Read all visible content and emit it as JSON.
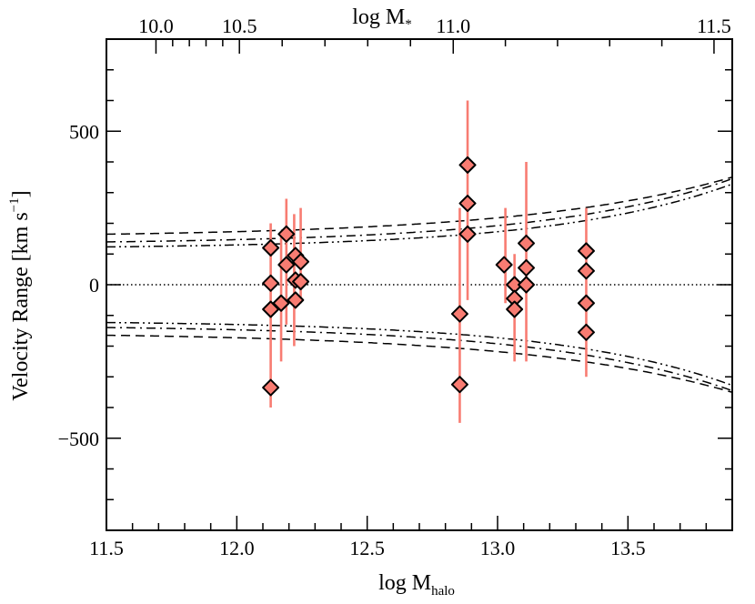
{
  "chart_data": {
    "type": "scatter",
    "xlabel": {
      "base": "log M",
      "sub": "halo"
    },
    "top_xlabel": {
      "base": "log M",
      "sub": "*"
    },
    "ylabel": {
      "base": "Velocity Range [km s",
      "sup": "−1",
      "end": "]"
    },
    "xlim": [
      11.5,
      13.9
    ],
    "ylim": [
      -800,
      800
    ],
    "x_ticks": [
      11.5,
      12.0,
      12.5,
      13.0,
      13.5
    ],
    "x_tick_labels": [
      "11.5",
      "12.0",
      "12.5",
      "13.0",
      "13.5"
    ],
    "y_ticks": [
      500,
      0,
      -500
    ],
    "y_tick_labels": [
      "500",
      "0",
      "−500"
    ],
    "top_ticks": [
      {
        "label": "10.0",
        "halo": 11.69
      },
      {
        "label": "10.5",
        "halo": 12.01
      },
      {
        "label": "11.0",
        "halo": 12.83
      },
      {
        "label": "11.5",
        "halo": 13.83
      }
    ],
    "marker_color": "#f87c72",
    "errorbar_color": "#f87c72",
    "reference_line": {
      "y": 0,
      "style": "dotted"
    },
    "curves": [
      {
        "name": "envelope-dashed",
        "style": "dashed",
        "A": 155,
        "B": 9.5,
        "C": 1.26
      },
      {
        "name": "envelope-dash-dot",
        "style": "dash-dot",
        "A": 132,
        "B": 7.4,
        "C": 1.4
      },
      {
        "name": "envelope-dash-dot-dot",
        "style": "dash-dot-dot",
        "A": 117,
        "B": 6.05,
        "C": 1.48
      }
    ],
    "groups": [
      {
        "name": "group-12.13",
        "errorbars": [
          {
            "x": 12.13,
            "low": -400,
            "high": 200
          }
        ],
        "points": [
          {
            "x": 12.13,
            "y": 120
          },
          {
            "x": 12.13,
            "y": 5
          },
          {
            "x": 12.13,
            "y": -80
          },
          {
            "x": 12.13,
            "y": -335
          }
        ]
      },
      {
        "name": "group-12.18",
        "errorbars": [
          {
            "x": 12.17,
            "low": -250,
            "high": 170
          },
          {
            "x": 12.19,
            "low": -130,
            "high": 280
          },
          {
            "x": 12.22,
            "low": -200,
            "high": 230
          },
          {
            "x": 12.245,
            "low": -60,
            "high": 250
          }
        ],
        "points": [
          {
            "x": 12.19,
            "y": 165
          },
          {
            "x": 12.225,
            "y": 95
          },
          {
            "x": 12.19,
            "y": 65
          },
          {
            "x": 12.245,
            "y": 75
          },
          {
            "x": 12.225,
            "y": 15
          },
          {
            "x": 12.245,
            "y": 10
          },
          {
            "x": 12.17,
            "y": -60
          },
          {
            "x": 12.225,
            "y": -50
          }
        ]
      },
      {
        "name": "group-12.85",
        "errorbars": [
          {
            "x": 12.855,
            "low": -450,
            "high": 250
          },
          {
            "x": 12.885,
            "low": -50,
            "high": 600
          }
        ],
        "points": [
          {
            "x": 12.885,
            "y": 390
          },
          {
            "x": 12.885,
            "y": 265
          },
          {
            "x": 12.885,
            "y": 165
          },
          {
            "x": 12.855,
            "y": -95
          },
          {
            "x": 12.855,
            "y": -325
          }
        ]
      },
      {
        "name": "group-13.05",
        "errorbars": [
          {
            "x": 13.03,
            "low": -60,
            "high": 250
          },
          {
            "x": 13.065,
            "low": -250,
            "high": 100
          },
          {
            "x": 13.11,
            "low": -250,
            "high": 400
          }
        ],
        "points": [
          {
            "x": 13.025,
            "y": 65
          },
          {
            "x": 13.11,
            "y": 135
          },
          {
            "x": 13.11,
            "y": 55
          },
          {
            "x": 13.065,
            "y": 0
          },
          {
            "x": 13.11,
            "y": 0
          },
          {
            "x": 13.065,
            "y": -45
          },
          {
            "x": 13.065,
            "y": -80
          }
        ]
      },
      {
        "name": "group-13.34",
        "errorbars": [
          {
            "x": 13.34,
            "low": -300,
            "high": 250
          }
        ],
        "points": [
          {
            "x": 13.34,
            "y": 110
          },
          {
            "x": 13.34,
            "y": 45
          },
          {
            "x": 13.34,
            "y": -60
          },
          {
            "x": 13.34,
            "y": -155
          }
        ]
      }
    ]
  }
}
